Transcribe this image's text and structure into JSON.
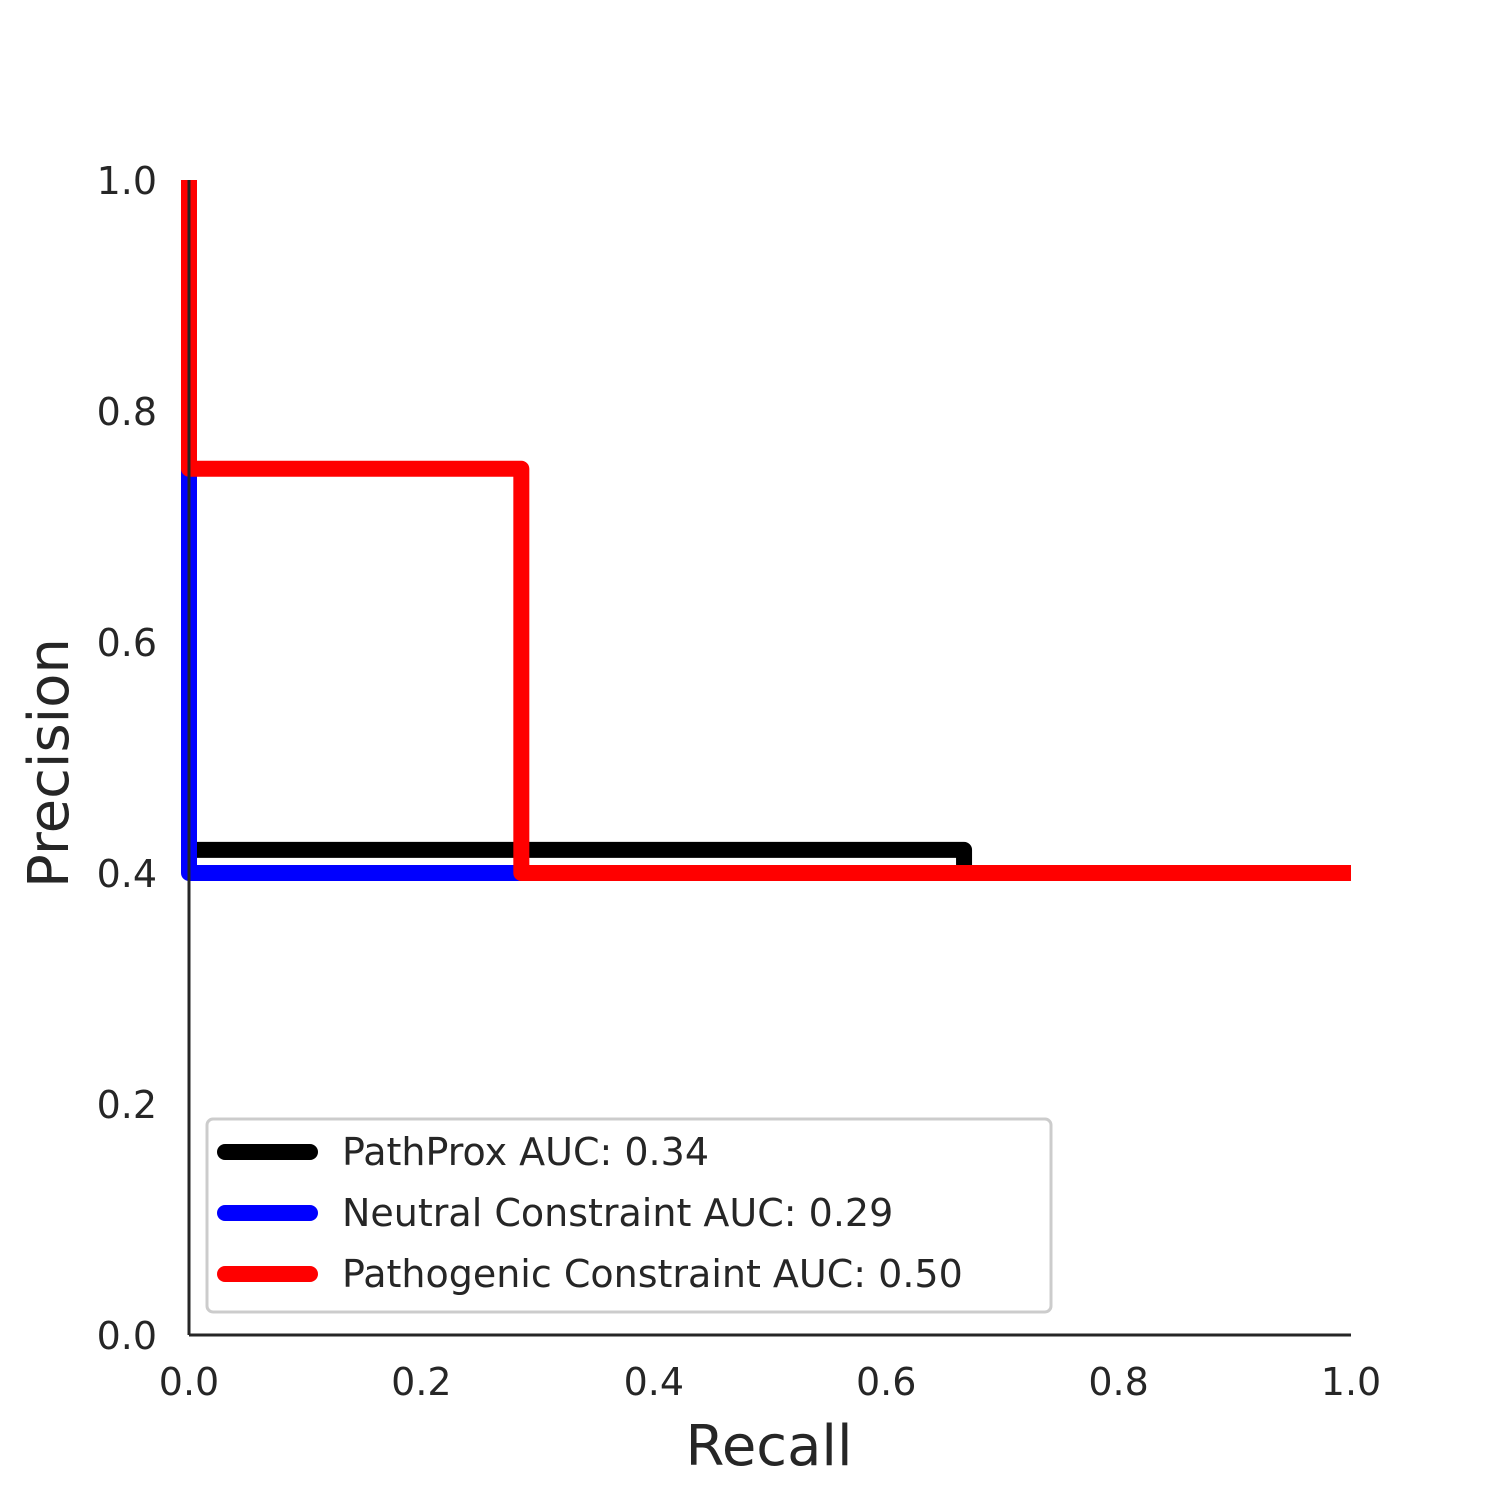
{
  "chart_data": {
    "type": "line",
    "xlabel": "Recall",
    "ylabel": "Precision",
    "xlim": [
      0.0,
      1.0
    ],
    "ylim": [
      0.0,
      1.0
    ],
    "x_ticks": [
      "0.0",
      "0.2",
      "0.4",
      "0.6",
      "0.8",
      "1.0"
    ],
    "y_ticks": [
      "0.0",
      "0.2",
      "0.4",
      "0.6",
      "0.8",
      "1.0"
    ],
    "grid": false,
    "legend_position": "bottom-left",
    "series": [
      {
        "name": "PathProx AUC:  0.34",
        "color": "#000000",
        "points": [
          [
            0.0,
            0.42
          ],
          [
            0.667,
            0.42
          ],
          [
            0.667,
            0.4
          ],
          [
            1.0,
            0.4
          ]
        ]
      },
      {
        "name": "Neutral Constraint AUC:  0.29",
        "color": "#0000ff",
        "points": [
          [
            0.0,
            0.75
          ],
          [
            0.0,
            0.4
          ],
          [
            1.0,
            0.4
          ]
        ]
      },
      {
        "name": "Pathogenic Constraint AUC:  0.50",
        "color": "#ff0000",
        "points": [
          [
            0.0,
            1.0
          ],
          [
            0.0,
            0.75
          ],
          [
            0.286,
            0.75
          ],
          [
            0.286,
            0.4
          ],
          [
            1.0,
            0.4
          ]
        ]
      }
    ]
  }
}
